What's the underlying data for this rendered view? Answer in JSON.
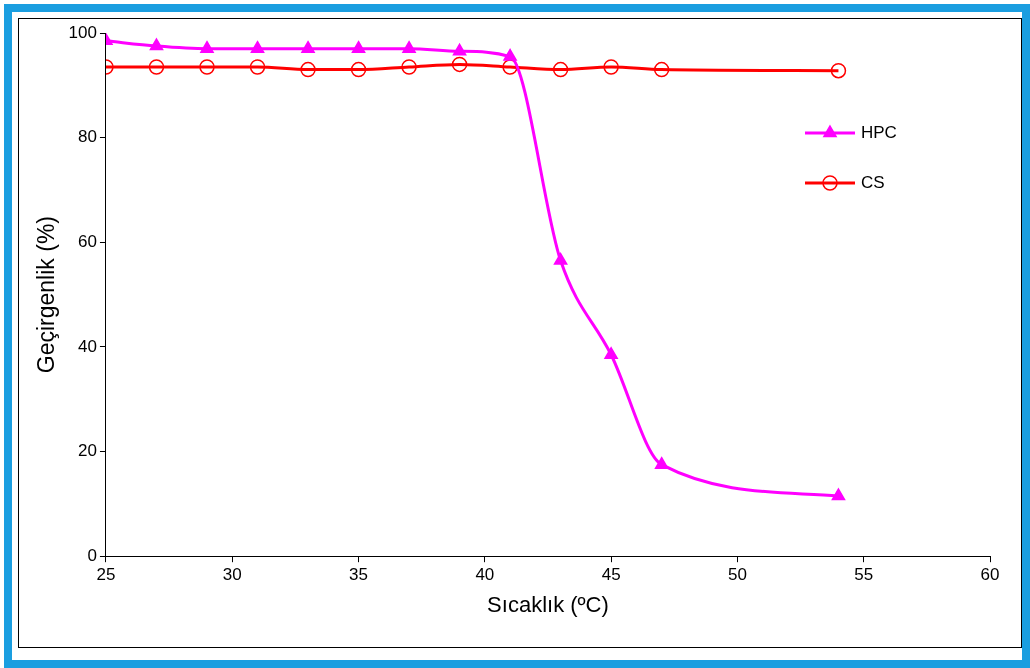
{
  "chart_data": {
    "type": "line",
    "xlabel": "Sıcaklık (ºC)",
    "ylabel": "Geçirgenlik (%)",
    "xlim": [
      25,
      60
    ],
    "xticks": [
      25,
      30,
      35,
      40,
      45,
      50,
      55,
      60
    ],
    "ylim": [
      0,
      100
    ],
    "yticks": [
      0,
      20,
      40,
      60,
      80,
      100
    ],
    "grid": false,
    "legend": "top right",
    "series": [
      {
        "name": "HPC",
        "color": "#ff00ff",
        "marker": "triangle",
        "x": [
          25,
          27,
          29,
          31,
          33,
          35,
          37,
          39,
          41,
          43,
          45,
          47,
          54
        ],
        "values": [
          98.5,
          97.5,
          97,
          97,
          97,
          97,
          97,
          96.5,
          95.5,
          56.5,
          38.5,
          17.5,
          11.5
        ]
      },
      {
        "name": "CS",
        "color": "#ff0000",
        "marker": "circle",
        "x": [
          25,
          27,
          29,
          31,
          33,
          35,
          37,
          39,
          41,
          43,
          45,
          47,
          54
        ],
        "values": [
          93.5,
          93.5,
          93.5,
          93.5,
          93,
          93,
          93.5,
          94,
          93.5,
          93,
          93.5,
          93,
          92.8
        ]
      }
    ]
  }
}
